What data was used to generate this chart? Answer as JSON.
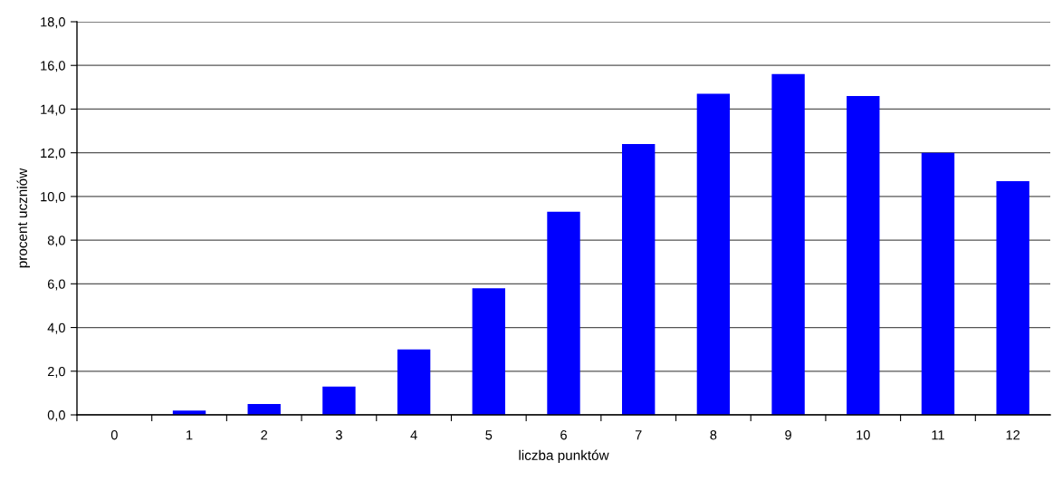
{
  "chart_data": {
    "type": "bar",
    "xlabel": "liczba punktów",
    "ylabel": "procent uczniów",
    "categories": [
      "0",
      "1",
      "2",
      "3",
      "4",
      "5",
      "6",
      "7",
      "8",
      "9",
      "10",
      "11",
      "12"
    ],
    "values": [
      0,
      0.2,
      0.5,
      1.3,
      3.0,
      5.8,
      9.3,
      12.4,
      14.7,
      15.6,
      14.6,
      12.0,
      10.7
    ],
    "color": "#0000ff",
    "ylim": [
      0,
      18
    ],
    "yticks": [
      {
        "value": 0,
        "label": "0,0"
      },
      {
        "value": 2,
        "label": "2,0"
      },
      {
        "value": 4,
        "label": "4,0"
      },
      {
        "value": 6,
        "label": "6,0"
      },
      {
        "value": 8,
        "label": "8,0"
      },
      {
        "value": 10,
        "label": "10,0"
      },
      {
        "value": 12,
        "label": "12,0"
      },
      {
        "value": 14,
        "label": "14,0"
      },
      {
        "value": 16,
        "label": "16,0"
      },
      {
        "value": 18,
        "label": "18,0"
      }
    ],
    "grid": "y",
    "legend": false
  }
}
